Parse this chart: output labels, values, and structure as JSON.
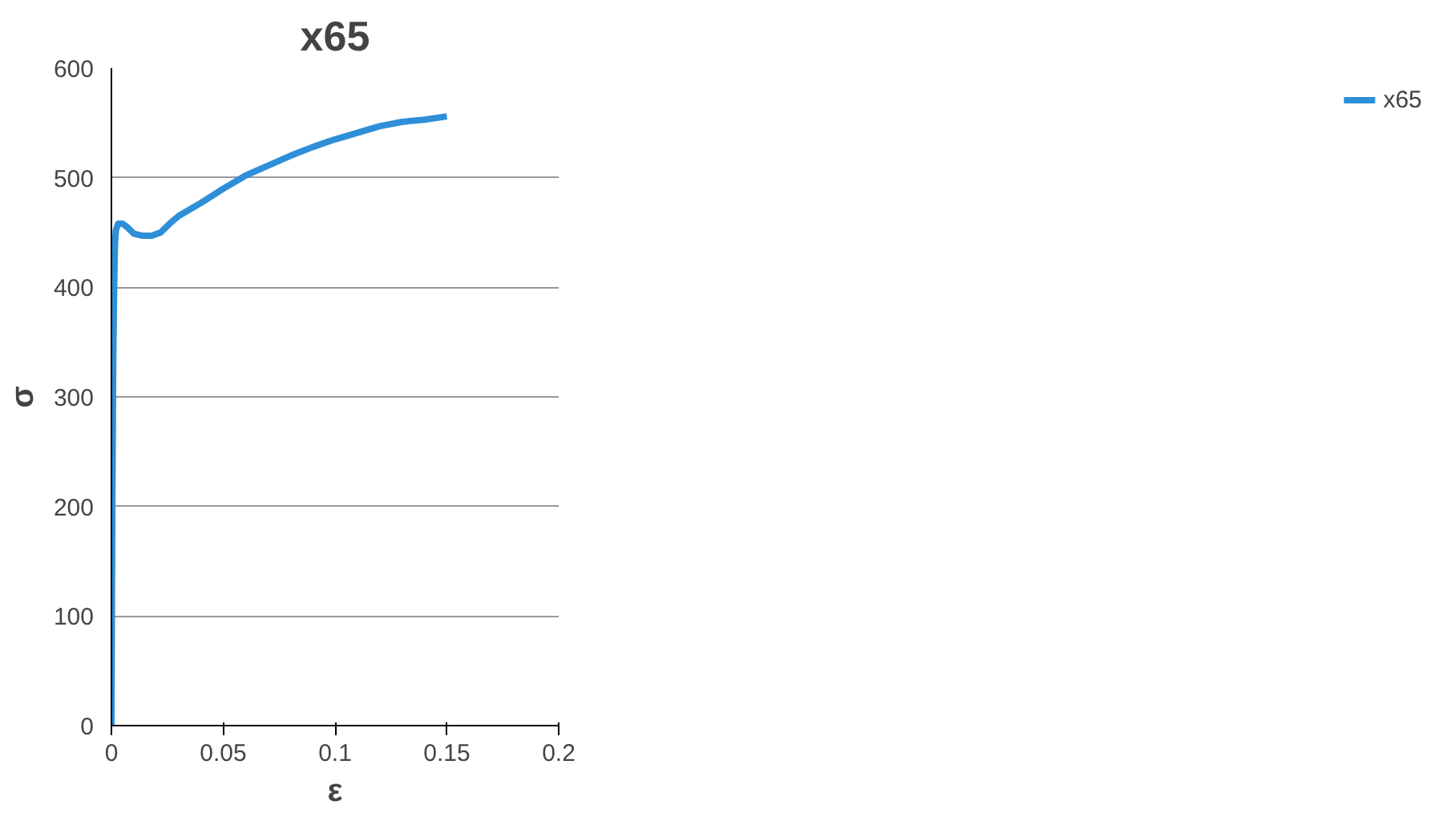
{
  "chart_data": {
    "type": "line",
    "title": "x65",
    "xlabel": "ε",
    "ylabel": "σ",
    "xlim": [
      0,
      0.2
    ],
    "ylim": [
      0,
      600
    ],
    "xticks": [
      0,
      0.05,
      0.1,
      0.15,
      0.2
    ],
    "yticks": [
      0,
      100,
      200,
      300,
      400,
      500,
      600
    ],
    "grid": "y",
    "legend": "right",
    "line_style": "solid",
    "series": [
      {
        "name": "x65",
        "color": "#2e8fd8",
        "x": [
          0,
          0.0004,
          0.0008,
          0.0012,
          0.0016,
          0.002,
          0.003,
          0.005,
          0.007,
          0.01,
          0.014,
          0.018,
          0.022,
          0.026,
          0.03,
          0.04,
          0.05,
          0.06,
          0.07,
          0.08,
          0.09,
          0.1,
          0.11,
          0.12,
          0.13,
          0.14,
          0.15
        ],
        "values": [
          0,
          200,
          330,
          400,
          440,
          452,
          458,
          458,
          455,
          449,
          447,
          447,
          450,
          458,
          465,
          477,
          490,
          502,
          511,
          520,
          528,
          535,
          541,
          547,
          551,
          553,
          556
        ]
      }
    ]
  }
}
